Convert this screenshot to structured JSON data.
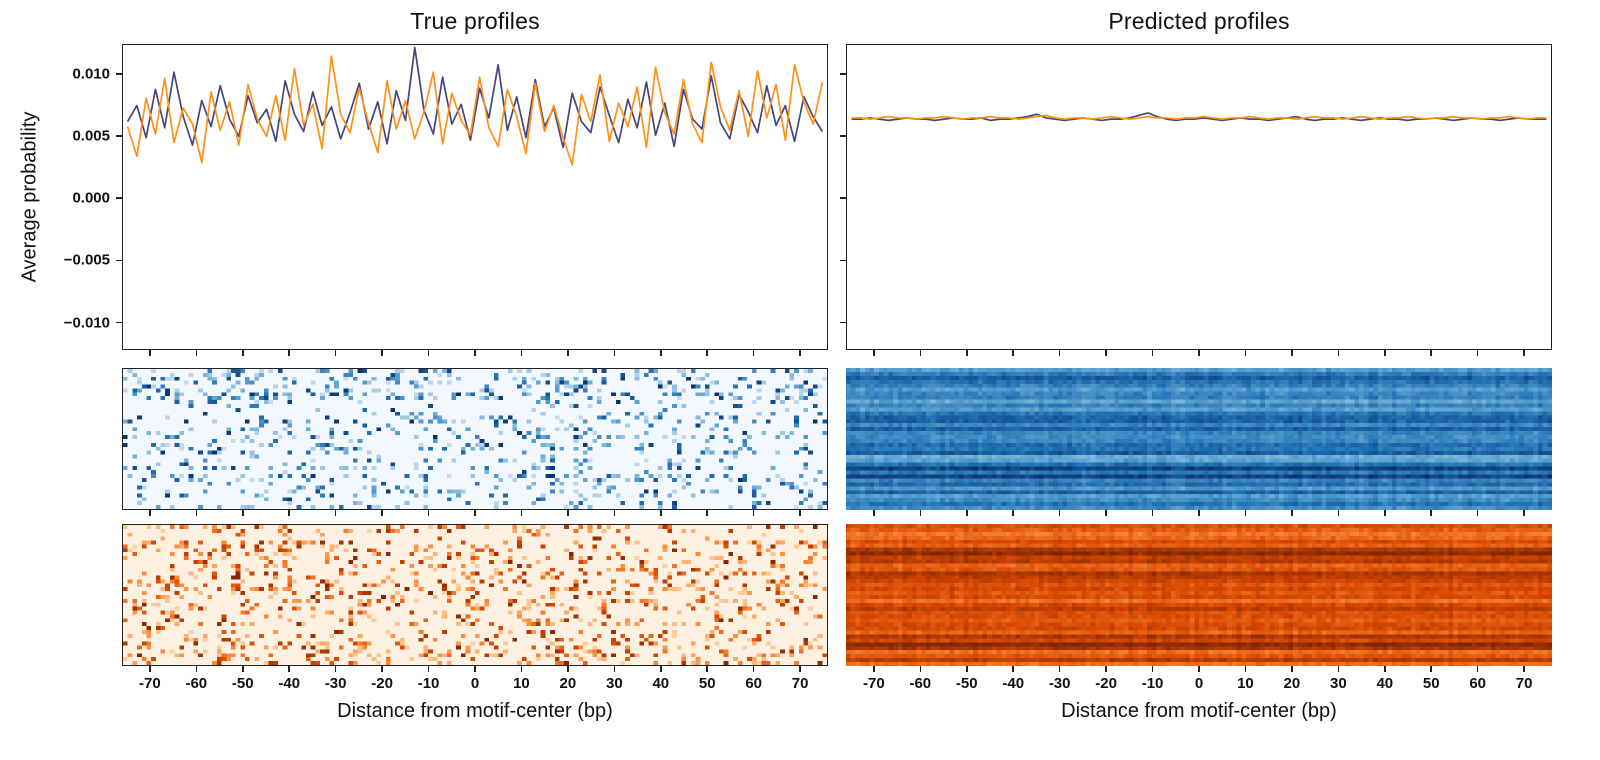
{
  "figure": {
    "left_title": "True profiles",
    "right_title": "Predicted profiles",
    "ylabel": "Average probability",
    "xlabel": "Distance from motif-center (bp)",
    "yticks": [
      "0.010",
      "0.005",
      "0.000",
      "−0.005",
      "−0.010"
    ],
    "ytick_values": [
      0.01,
      0.005,
      0.0,
      -0.005,
      -0.01
    ],
    "xticks": [
      "-70",
      "-60",
      "-50",
      "-40",
      "-30",
      "-20",
      "-10",
      "0",
      "10",
      "20",
      "30",
      "40",
      "50",
      "60",
      "70"
    ],
    "xtick_values": [
      -70,
      -60,
      -50,
      -40,
      -30,
      -20,
      -10,
      0,
      10,
      20,
      30,
      40,
      50,
      60,
      70
    ]
  },
  "colors": {
    "line_navy": "#45457f",
    "line_orange": "#ff9015",
    "axis": "#222222",
    "text": "#111111"
  },
  "chart_data": [
    {
      "type": "line",
      "panel": "true",
      "title": "True profiles",
      "xlabel": "Distance from motif-center (bp)",
      "ylabel": "Average probability",
      "xlim": [
        -76,
        76
      ],
      "ylim": [
        -0.0122,
        0.0124
      ],
      "grid": false,
      "legend": "none",
      "x": [
        -75,
        -73,
        -71,
        -69,
        -67,
        -65,
        -63,
        -61,
        -59,
        -57,
        -55,
        -53,
        -51,
        -49,
        -47,
        -45,
        -43,
        -41,
        -39,
        -37,
        -35,
        -33,
        -31,
        -29,
        -27,
        -25,
        -23,
        -21,
        -19,
        -17,
        -15,
        -13,
        -11,
        -9,
        -7,
        -5,
        -3,
        -1,
        1,
        3,
        5,
        7,
        9,
        11,
        13,
        15,
        17,
        19,
        21,
        23,
        25,
        27,
        29,
        31,
        33,
        35,
        37,
        39,
        41,
        43,
        45,
        47,
        49,
        51,
        53,
        55,
        57,
        59,
        61,
        63,
        65,
        67,
        69,
        71,
        73,
        75
      ],
      "series": [
        {
          "name": "strand-1-navy",
          "color": "#45457f",
          "values": [
            0.0062,
            0.0075,
            0.0049,
            0.0088,
            0.0057,
            0.0102,
            0.0066,
            0.0043,
            0.0079,
            0.0058,
            0.0091,
            0.0064,
            0.005,
            0.0083,
            0.0061,
            0.0072,
            0.0046,
            0.0095,
            0.0068,
            0.0054,
            0.0086,
            0.0059,
            0.0074,
            0.0048,
            0.0069,
            0.0093,
            0.0056,
            0.0078,
            0.0044,
            0.0087,
            0.0063,
            0.0122,
            0.0071,
            0.0052,
            0.0098,
            0.006,
            0.0076,
            0.0047,
            0.0089,
            0.0065,
            0.0108,
            0.0055,
            0.0082,
            0.0049,
            0.0096,
            0.0058,
            0.0073,
            0.0041,
            0.0085,
            0.0062,
            0.0053,
            0.009,
            0.0067,
            0.0045,
            0.008,
            0.0057,
            0.0094,
            0.0051,
            0.0077,
            0.0042,
            0.0088,
            0.0064,
            0.0056,
            0.0099,
            0.0061,
            0.0048,
            0.0084,
            0.007,
            0.0053,
            0.0091,
            0.0059,
            0.0075,
            0.0046,
            0.0082,
            0.0066,
            0.0054
          ]
        },
        {
          "name": "strand-2-orange",
          "color": "#ff9015",
          "values": [
            0.0058,
            0.0034,
            0.0081,
            0.0052,
            0.0097,
            0.0045,
            0.0073,
            0.006,
            0.0029,
            0.0086,
            0.0055,
            0.0078,
            0.0043,
            0.0092,
            0.0064,
            0.005,
            0.0083,
            0.0047,
            0.0105,
            0.0059,
            0.0076,
            0.004,
            0.0115,
            0.0068,
            0.0053,
            0.0089,
            0.0061,
            0.0037,
            0.0095,
            0.0056,
            0.0079,
            0.0048,
            0.007,
            0.0102,
            0.0044,
            0.0085,
            0.0063,
            0.0051,
            0.0098,
            0.0057,
            0.0042,
            0.0088,
            0.0066,
            0.0036,
            0.0093,
            0.0054,
            0.0075,
            0.0049,
            0.0027,
            0.0084,
            0.0062,
            0.01,
            0.0046,
            0.0077,
            0.0058,
            0.009,
            0.0041,
            0.0106,
            0.0069,
            0.0052,
            0.0096,
            0.006,
            0.0045,
            0.011,
            0.0074,
            0.0055,
            0.0087,
            0.005,
            0.0103,
            0.0065,
            0.0092,
            0.0047,
            0.0108,
            0.0078,
            0.006,
            0.0094
          ]
        }
      ]
    },
    {
      "type": "line",
      "panel": "predicted",
      "title": "Predicted profiles",
      "xlabel": "Distance from motif-center (bp)",
      "ylabel": "",
      "xlim": [
        -76,
        76
      ],
      "ylim": [
        -0.0122,
        0.0124
      ],
      "grid": false,
      "legend": "none",
      "x": [
        -75,
        -73,
        -71,
        -69,
        -67,
        -65,
        -63,
        -61,
        -59,
        -57,
        -55,
        -53,
        -51,
        -49,
        -47,
        -45,
        -43,
        -41,
        -39,
        -37,
        -35,
        -33,
        -31,
        -29,
        -27,
        -25,
        -23,
        -21,
        -19,
        -17,
        -15,
        -13,
        -11,
        -9,
        -7,
        -5,
        -3,
        -1,
        1,
        3,
        5,
        7,
        9,
        11,
        13,
        15,
        17,
        19,
        21,
        23,
        25,
        27,
        29,
        31,
        33,
        35,
        37,
        39,
        41,
        43,
        45,
        47,
        49,
        51,
        53,
        55,
        57,
        59,
        61,
        63,
        65,
        67,
        69,
        71,
        73,
        75
      ],
      "series": [
        {
          "name": "strand-1-navy",
          "color": "#45457f",
          "values": [
            0.0064,
            0.0064,
            0.0065,
            0.0064,
            0.0063,
            0.0064,
            0.0065,
            0.0064,
            0.0064,
            0.0063,
            0.0064,
            0.0065,
            0.0064,
            0.0064,
            0.0065,
            0.0063,
            0.0064,
            0.0064,
            0.0065,
            0.0066,
            0.0068,
            0.0065,
            0.0064,
            0.0063,
            0.0064,
            0.0065,
            0.0064,
            0.0063,
            0.0064,
            0.0064,
            0.0065,
            0.0067,
            0.0069,
            0.0066,
            0.0064,
            0.0063,
            0.0064,
            0.0064,
            0.0065,
            0.0064,
            0.0063,
            0.0064,
            0.0065,
            0.0064,
            0.0064,
            0.0063,
            0.0064,
            0.0065,
            0.0066,
            0.0064,
            0.0063,
            0.0064,
            0.0064,
            0.0065,
            0.0064,
            0.0063,
            0.0064,
            0.0065,
            0.0064,
            0.0064,
            0.0063,
            0.0064,
            0.0064,
            0.0065,
            0.0064,
            0.0063,
            0.0064,
            0.0065,
            0.0064,
            0.0064,
            0.0063,
            0.0064,
            0.0065,
            0.0064,
            0.0064,
            0.0064
          ]
        },
        {
          "name": "strand-2-orange",
          "color": "#ff9015",
          "values": [
            0.0065,
            0.0065,
            0.0064,
            0.0065,
            0.0066,
            0.0065,
            0.0065,
            0.0064,
            0.0065,
            0.0065,
            0.0066,
            0.0065,
            0.0064,
            0.0065,
            0.0065,
            0.0066,
            0.0065,
            0.0065,
            0.0064,
            0.0065,
            0.0066,
            0.0067,
            0.0065,
            0.0064,
            0.0065,
            0.0065,
            0.0064,
            0.0065,
            0.0066,
            0.0065,
            0.0064,
            0.0065,
            0.0066,
            0.0065,
            0.0065,
            0.0064,
            0.0065,
            0.0065,
            0.0066,
            0.0065,
            0.0064,
            0.0065,
            0.0065,
            0.0066,
            0.0065,
            0.0064,
            0.0065,
            0.0065,
            0.0064,
            0.0065,
            0.0066,
            0.0065,
            0.0065,
            0.0064,
            0.0065,
            0.0066,
            0.0065,
            0.0064,
            0.0065,
            0.0065,
            0.0066,
            0.0065,
            0.0064,
            0.0065,
            0.0065,
            0.0066,
            0.0065,
            0.0065,
            0.0064,
            0.0065,
            0.0065,
            0.0066,
            0.0065,
            0.0064,
            0.0065,
            0.0065
          ]
        }
      ]
    },
    {
      "type": "heatmap",
      "panel": "true",
      "name": "true-profile-heatmap-strand1",
      "colormap": "Blues",
      "style": "sparse",
      "rows": 36,
      "cols": 150,
      "x_range": [
        -75,
        75
      ],
      "dot_density": 0.13,
      "background_value": 0.02,
      "value_range": [
        0.25,
        1.0
      ],
      "seed": 11
    },
    {
      "type": "heatmap",
      "panel": "true",
      "name": "true-profile-heatmap-strand2",
      "colormap": "Oranges",
      "style": "sparse",
      "rows": 36,
      "cols": 150,
      "x_range": [
        -75,
        75
      ],
      "dot_density": 0.13,
      "background_value": 0.03,
      "value_range": [
        0.25,
        1.0
      ],
      "seed": 22
    },
    {
      "type": "heatmap",
      "panel": "predicted",
      "name": "predicted-profile-heatmap-strand1",
      "colormap": "Blues",
      "style": "dense",
      "rows": 36,
      "cols": 150,
      "x_range": [
        -75,
        75
      ],
      "value_range": [
        0.35,
        0.95
      ],
      "seed": 33
    },
    {
      "type": "heatmap",
      "panel": "predicted",
      "name": "predicted-profile-heatmap-strand2",
      "colormap": "Oranges",
      "style": "dense",
      "rows": 36,
      "cols": 150,
      "x_range": [
        -75,
        75
      ],
      "value_range": [
        0.45,
        1.0
      ],
      "seed": 44
    }
  ]
}
